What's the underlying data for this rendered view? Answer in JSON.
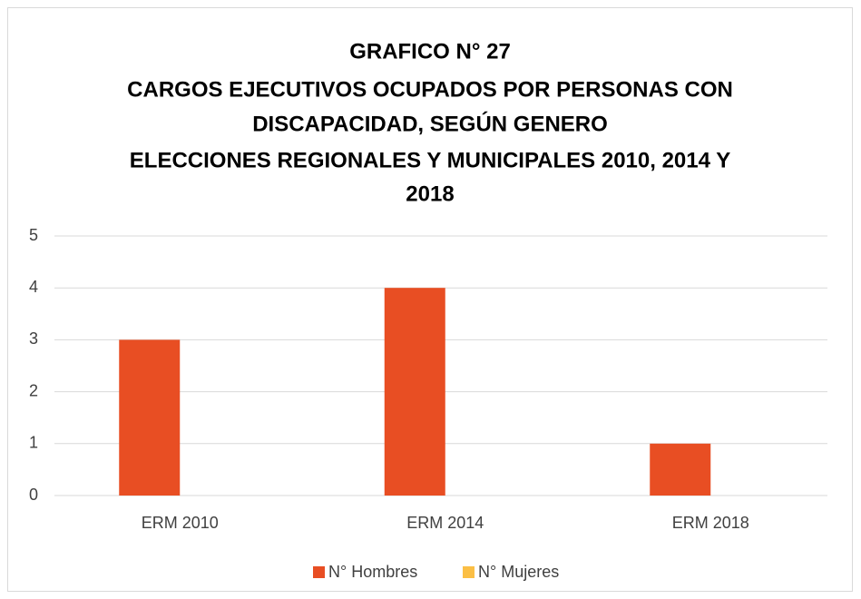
{
  "chart_data": {
    "type": "bar",
    "title": [
      "GRAFICO N° 27",
      "CARGOS EJECUTIVOS OCUPADOS POR PERSONAS CON",
      "DISCAPACIDAD, SEGÚN GENERO",
      "ELECCIONES REGIONALES Y MUNICIPALES 2010, 2014 Y",
      "2018"
    ],
    "categories": [
      "ERM 2010",
      "ERM 2014",
      "ERM 2018"
    ],
    "series": [
      {
        "name": "N° Hombres",
        "color": "#e84e23",
        "values": [
          3,
          4,
          1
        ]
      },
      {
        "name": "N° Mujeres",
        "color": "#fbbf45",
        "values": [
          0,
          0,
          0
        ]
      }
    ],
    "ylim": [
      0,
      5
    ],
    "yticks": [
      0,
      1,
      2,
      3,
      4,
      5
    ],
    "grid": true,
    "legend": "bottom"
  }
}
